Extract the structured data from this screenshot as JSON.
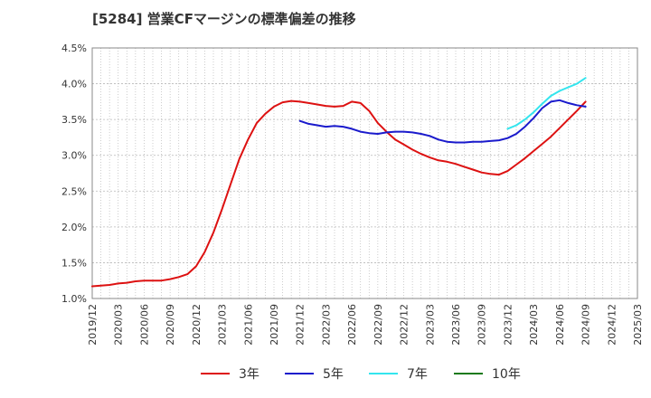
{
  "chart_data": {
    "type": "line",
    "title": "[5284]  営業CFマージンの標準偏差の推移",
    "xlabel": "",
    "ylabel": "",
    "ylim": [
      1.0,
      4.5
    ],
    "y_ticks": [
      "1.0%",
      "1.5%",
      "2.0%",
      "2.5%",
      "3.0%",
      "3.5%",
      "4.0%",
      "4.5%"
    ],
    "x_ticks": [
      "2019/12",
      "2020/03",
      "2020/06",
      "2020/09",
      "2020/12",
      "2021/03",
      "2021/06",
      "2021/09",
      "2021/12",
      "2022/03",
      "2022/06",
      "2022/09",
      "2022/12",
      "2023/03",
      "2023/06",
      "2023/09",
      "2023/12",
      "2024/03",
      "2024/06",
      "2024/09",
      "2024/12",
      "2025/03"
    ],
    "grid": true,
    "legend_position": "bottom",
    "series": [
      {
        "name": "3年",
        "color": "#dd1111",
        "points": [
          [
            "2019/12",
            1.17
          ],
          [
            "2020/01",
            1.18
          ],
          [
            "2020/02",
            1.19
          ],
          [
            "2020/03",
            1.21
          ],
          [
            "2020/04",
            1.22
          ],
          [
            "2020/05",
            1.24
          ],
          [
            "2020/06",
            1.25
          ],
          [
            "2020/07",
            1.25
          ],
          [
            "2020/08",
            1.25
          ],
          [
            "2020/09",
            1.27
          ],
          [
            "2020/10",
            1.3
          ],
          [
            "2020/11",
            1.34
          ],
          [
            "2020/12",
            1.45
          ],
          [
            "2021/01",
            1.65
          ],
          [
            "2021/02",
            1.92
          ],
          [
            "2021/03",
            2.25
          ],
          [
            "2021/04",
            2.6
          ],
          [
            "2021/05",
            2.95
          ],
          [
            "2021/06",
            3.22
          ],
          [
            "2021/07",
            3.45
          ],
          [
            "2021/08",
            3.58
          ],
          [
            "2021/09",
            3.68
          ],
          [
            "2021/10",
            3.74
          ],
          [
            "2021/11",
            3.76
          ],
          [
            "2021/12",
            3.75
          ],
          [
            "2022/01",
            3.73
          ],
          [
            "2022/02",
            3.71
          ],
          [
            "2022/03",
            3.69
          ],
          [
            "2022/04",
            3.68
          ],
          [
            "2022/05",
            3.69
          ],
          [
            "2022/06",
            3.75
          ],
          [
            "2022/07",
            3.73
          ],
          [
            "2022/08",
            3.62
          ],
          [
            "2022/09",
            3.45
          ],
          [
            "2022/10",
            3.33
          ],
          [
            "2022/11",
            3.22
          ],
          [
            "2022/12",
            3.15
          ],
          [
            "2023/01",
            3.08
          ],
          [
            "2023/02",
            3.02
          ],
          [
            "2023/03",
            2.97
          ],
          [
            "2023/04",
            2.93
          ],
          [
            "2023/05",
            2.91
          ],
          [
            "2023/06",
            2.88
          ],
          [
            "2023/07",
            2.84
          ],
          [
            "2023/08",
            2.8
          ],
          [
            "2023/09",
            2.76
          ],
          [
            "2023/10",
            2.74
          ],
          [
            "2023/11",
            2.73
          ],
          [
            "2023/12",
            2.78
          ],
          [
            "2024/01",
            2.87
          ],
          [
            "2024/02",
            2.96
          ],
          [
            "2024/03",
            3.06
          ],
          [
            "2024/04",
            3.16
          ],
          [
            "2024/05",
            3.26
          ],
          [
            "2024/06",
            3.38
          ],
          [
            "2024/07",
            3.5
          ],
          [
            "2024/08",
            3.62
          ],
          [
            "2024/09",
            3.75
          ]
        ]
      },
      {
        "name": "5年",
        "color": "#1a1acc",
        "points": [
          [
            "2021/12",
            3.48
          ],
          [
            "2022/01",
            3.44
          ],
          [
            "2022/02",
            3.42
          ],
          [
            "2022/03",
            3.4
          ],
          [
            "2022/04",
            3.41
          ],
          [
            "2022/05",
            3.4
          ],
          [
            "2022/06",
            3.37
          ],
          [
            "2022/07",
            3.33
          ],
          [
            "2022/08",
            3.31
          ],
          [
            "2022/09",
            3.3
          ],
          [
            "2022/10",
            3.32
          ],
          [
            "2022/11",
            3.33
          ],
          [
            "2022/12",
            3.33
          ],
          [
            "2023/01",
            3.32
          ],
          [
            "2023/02",
            3.3
          ],
          [
            "2023/03",
            3.27
          ],
          [
            "2023/04",
            3.22
          ],
          [
            "2023/05",
            3.19
          ],
          [
            "2023/06",
            3.18
          ],
          [
            "2023/07",
            3.18
          ],
          [
            "2023/08",
            3.19
          ],
          [
            "2023/09",
            3.19
          ],
          [
            "2023/10",
            3.2
          ],
          [
            "2023/11",
            3.21
          ],
          [
            "2023/12",
            3.24
          ],
          [
            "2024/01",
            3.3
          ],
          [
            "2024/02",
            3.4
          ],
          [
            "2024/03",
            3.52
          ],
          [
            "2024/04",
            3.66
          ],
          [
            "2024/05",
            3.75
          ],
          [
            "2024/06",
            3.77
          ],
          [
            "2024/07",
            3.73
          ],
          [
            "2024/08",
            3.7
          ],
          [
            "2024/09",
            3.68
          ]
        ]
      },
      {
        "name": "7年",
        "color": "#33e5ee",
        "points": [
          [
            "2023/12",
            3.37
          ],
          [
            "2024/01",
            3.42
          ],
          [
            "2024/02",
            3.5
          ],
          [
            "2024/03",
            3.6
          ],
          [
            "2024/04",
            3.72
          ],
          [
            "2024/05",
            3.83
          ],
          [
            "2024/06",
            3.9
          ],
          [
            "2024/07",
            3.95
          ],
          [
            "2024/08",
            4.0
          ],
          [
            "2024/09",
            4.08
          ]
        ]
      },
      {
        "name": "10年",
        "color": "#1a7a1a",
        "points": []
      }
    ]
  }
}
